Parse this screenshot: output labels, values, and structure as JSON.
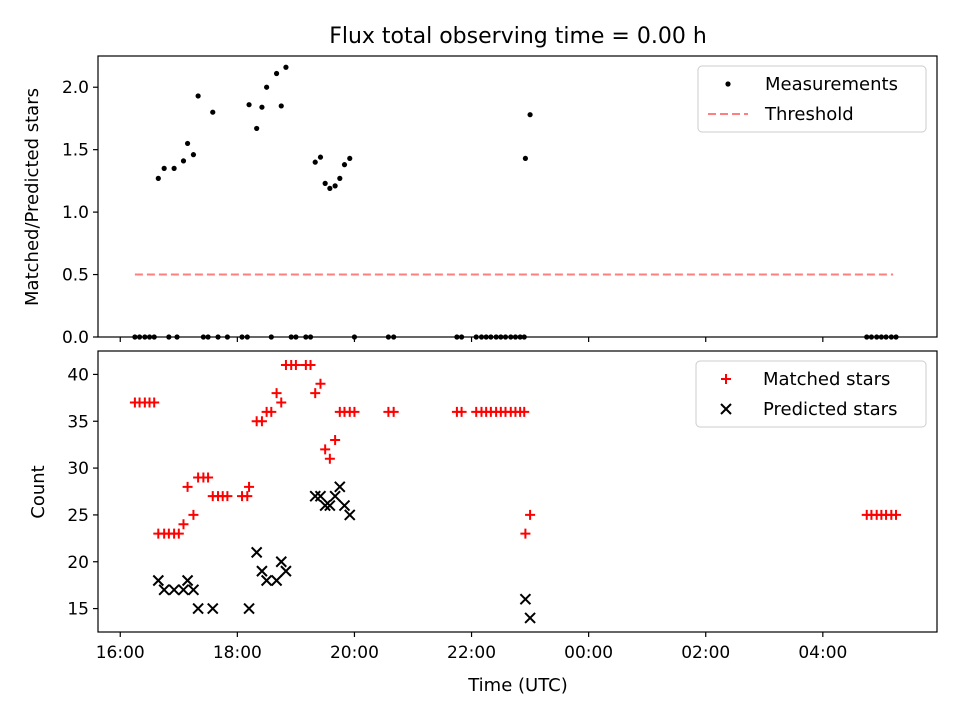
{
  "figure": {
    "title": "Flux total observing time = 0.00 h",
    "xlabel": "Time (UTC)"
  },
  "chart_data": [
    {
      "type": "scatter",
      "ylabel": "Matched/Predicted stars",
      "ylim": [
        0,
        2.25
      ],
      "yticks": [
        0.0,
        0.5,
        1.0,
        1.5,
        2.0
      ],
      "xlim_hours": [
        15.62,
        29.95
      ],
      "legend_position": "top-right",
      "legend": [
        "Measurements",
        "Threshold"
      ],
      "threshold": {
        "name": "Threshold",
        "value": 0.5,
        "x_range_hours": [
          16.25,
          29.2
        ],
        "color": "#ff7f7f"
      },
      "series": [
        {
          "name": "Measurements",
          "color": "#000000",
          "x_hours": [
            16.65,
            16.75,
            16.92,
            17.08,
            17.15,
            17.25,
            17.33,
            17.58,
            18.2,
            18.33,
            18.42,
            18.5,
            18.67,
            18.75,
            18.83,
            19.33,
            19.42,
            19.5,
            19.58,
            19.67,
            19.75,
            19.83,
            19.92,
            22.92,
            23.0
          ],
          "values": [
            1.27,
            1.35,
            1.35,
            1.41,
            1.55,
            1.46,
            1.93,
            1.8,
            1.86,
            1.67,
            1.84,
            2.0,
            2.11,
            1.85,
            2.16,
            1.4,
            1.44,
            1.23,
            1.19,
            1.21,
            1.27,
            1.38,
            1.43,
            1.43,
            1.78
          ]
        },
        {
          "name": "Measurements (zero)",
          "color": "#000000",
          "x_hours": [
            16.25,
            16.33,
            16.42,
            16.5,
            16.58,
            16.83,
            16.97,
            17.42,
            17.5,
            17.67,
            17.83,
            18.08,
            18.17,
            18.58,
            18.92,
            19.0,
            19.17,
            19.25,
            20.0,
            20.58,
            20.67,
            21.75,
            21.83,
            22.08,
            22.17,
            22.25,
            22.33,
            22.42,
            22.5,
            22.58,
            22.67,
            22.75,
            22.83,
            22.9,
            28.75,
            28.83,
            28.92,
            29.0,
            29.08,
            29.17,
            29.25
          ],
          "values": [
            0,
            0,
            0,
            0,
            0,
            0,
            0,
            0,
            0,
            0,
            0,
            0,
            0,
            0,
            0,
            0,
            0,
            0,
            0,
            0,
            0,
            0,
            0,
            0,
            0,
            0,
            0,
            0,
            0,
            0,
            0,
            0,
            0,
            0,
            0,
            0,
            0,
            0,
            0,
            0,
            0
          ]
        }
      ]
    },
    {
      "type": "scatter",
      "ylabel": "Count",
      "ylim": [
        12.5,
        42.5
      ],
      "yticks": [
        15,
        20,
        25,
        30,
        35,
        40
      ],
      "xlim_hours": [
        15.62,
        29.95
      ],
      "xticks": [
        "16:00",
        "18:00",
        "20:00",
        "22:00",
        "00:00",
        "02:00",
        "04:00"
      ],
      "xtick_hours": [
        16,
        18,
        20,
        22,
        24,
        26,
        28
      ],
      "legend_position": "top-right",
      "legend": [
        "Matched stars",
        "Predicted stars"
      ],
      "series": [
        {
          "name": "Matched stars",
          "marker": "plus",
          "color": "#ff0000",
          "x_hours": [
            16.25,
            16.33,
            16.42,
            16.5,
            16.58,
            16.65,
            16.75,
            16.83,
            16.92,
            17.0,
            17.08,
            17.15,
            17.25,
            17.33,
            17.42,
            17.5,
            17.58,
            17.67,
            17.75,
            17.83,
            18.08,
            18.17,
            18.2,
            18.33,
            18.42,
            18.5,
            18.58,
            18.67,
            18.75,
            18.83,
            18.92,
            19.0,
            19.17,
            19.25,
            19.33,
            19.42,
            19.5,
            19.58,
            19.67,
            19.75,
            19.83,
            19.92,
            20.0,
            20.58,
            20.67,
            21.75,
            21.83,
            22.08,
            22.17,
            22.25,
            22.33,
            22.42,
            22.5,
            22.58,
            22.67,
            22.75,
            22.83,
            22.9,
            22.92,
            23.0,
            28.75,
            28.83,
            28.92,
            29.0,
            29.08,
            29.17,
            29.25
          ],
          "values": [
            37,
            37,
            37,
            37,
            37,
            23,
            23,
            23,
            23,
            23,
            24,
            28,
            25,
            29,
            29,
            29,
            27,
            27,
            27,
            27,
            27,
            27,
            28,
            35,
            35,
            36,
            36,
            38,
            37,
            41,
            41,
            41,
            41,
            41,
            38,
            39,
            32,
            31,
            33,
            36,
            36,
            36,
            36,
            36,
            36,
            36,
            36,
            36,
            36,
            36,
            36,
            36,
            36,
            36,
            36,
            36,
            36,
            36,
            23,
            25,
            25,
            25,
            25,
            25,
            25,
            25,
            25
          ]
        },
        {
          "name": "Predicted stars",
          "marker": "x",
          "color": "#000000",
          "x_hours": [
            16.65,
            16.75,
            16.92,
            17.08,
            17.15,
            17.25,
            17.33,
            17.58,
            18.2,
            18.33,
            18.42,
            18.5,
            18.67,
            18.75,
            18.83,
            19.33,
            19.42,
            19.5,
            19.58,
            19.67,
            19.75,
            19.83,
            19.92,
            22.92,
            23.0
          ],
          "values": [
            18,
            17,
            17,
            17,
            18,
            17,
            15,
            15,
            15,
            21,
            19,
            18,
            18,
            20,
            19,
            27,
            27,
            26,
            26,
            27,
            28,
            26,
            25,
            16,
            14
          ]
        }
      ]
    }
  ]
}
